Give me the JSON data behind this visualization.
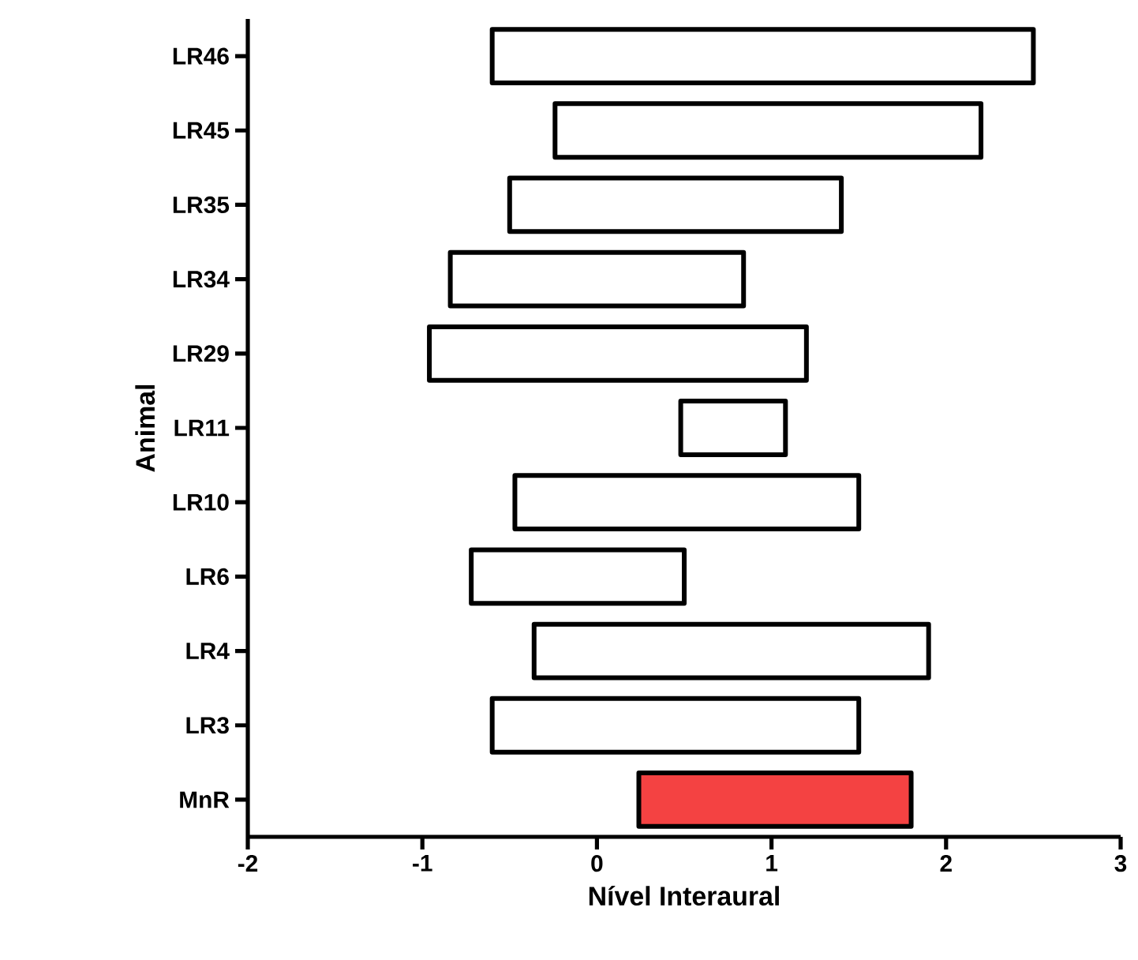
{
  "chart_data": {
    "type": "bar",
    "orientation": "horizontal",
    "xlabel": "Nível Interaural",
    "ylabel": "Animal",
    "categories": [
      "LR46",
      "LR45",
      "LR35",
      "LR34",
      "LR29",
      "LR11",
      "LR10",
      "LR6",
      "LR4",
      "LR3",
      "MnR"
    ],
    "base": [
      -0.6,
      -0.24,
      -0.5,
      -0.84,
      -0.96,
      0.48,
      -0.47,
      -0.72,
      -0.36,
      -0.6,
      0.24
    ],
    "values": [
      3.1,
      2.44,
      1.9,
      1.68,
      2.16,
      0.6,
      1.97,
      1.22,
      2.26,
      2.1,
      1.56
    ],
    "colors": [
      "#ffffff",
      "#ffffff",
      "#ffffff",
      "#ffffff",
      "#ffffff",
      "#ffffff",
      "#ffffff",
      "#ffffff",
      "#ffffff",
      "#ffffff",
      "#f44242"
    ],
    "xlim": [
      -2,
      3
    ],
    "xticks": [
      -2,
      -1,
      0,
      1,
      2,
      3
    ]
  }
}
